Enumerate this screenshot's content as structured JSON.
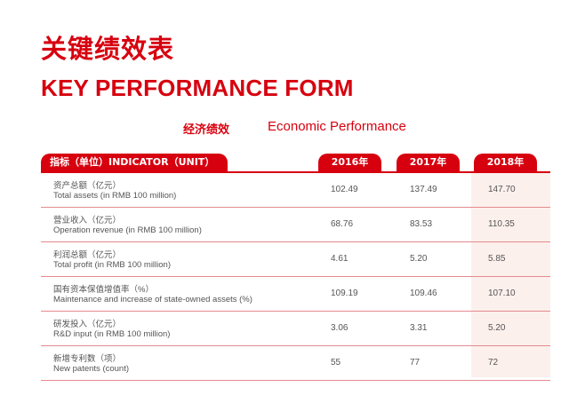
{
  "title": {
    "cn": "关键绩效表",
    "en": "KEY PERFORMANCE FORM"
  },
  "section": {
    "cn": "经济绩效",
    "en": "Economic Performance"
  },
  "colors": {
    "accent": "#d7000f",
    "highlight_column": "#fcf0ec",
    "row_divider": "#e58a8f"
  },
  "table": {
    "headers": [
      "指标（单位）INDICATOR（UNIT）",
      "2016年",
      "2017年",
      "2018年"
    ],
    "rows": [
      {
        "label_cn": "资产总额（亿元）",
        "label_en": "Total assets (in RMB 100 million)",
        "values": [
          "102.49",
          "137.49",
          "147.70"
        ]
      },
      {
        "label_cn": "营业收入（亿元）",
        "label_en": "Operation revenue (in RMB 100 million)",
        "values": [
          "68.76",
          "83.53",
          "110.35"
        ]
      },
      {
        "label_cn": "利润总额（亿元）",
        "label_en": "Total profit (in RMB 100 million)",
        "values": [
          "4.61",
          "5.20",
          "5.85"
        ]
      },
      {
        "label_cn": "国有资本保值增值率（%）",
        "label_en": "Maintenance and increase of state-owned assets (%)",
        "values": [
          "109.19",
          "109.46",
          "107.10"
        ]
      },
      {
        "label_cn": "研发投入（亿元）",
        "label_en": "R&D input (in RMB 100 million)",
        "values": [
          "3.06",
          "3.31",
          "5.20"
        ]
      },
      {
        "label_cn": "新增专利数（项）",
        "label_en": "New patents (count)",
        "values": [
          "55",
          "77",
          "72"
        ]
      }
    ]
  }
}
